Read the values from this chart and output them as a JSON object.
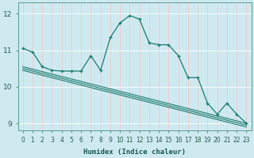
{
  "xlabel": "Humidex (Indice chaleur)",
  "bg_color": "#ceeaf0",
  "grid_color": "#f0c8c8",
  "line_color": "#1a7a6e",
  "ylim": [
    8.8,
    12.3
  ],
  "xlim": [
    -0.5,
    23.5
  ],
  "yticks": [
    9,
    10,
    11,
    12
  ],
  "xticks": [
    0,
    1,
    2,
    3,
    4,
    5,
    6,
    7,
    8,
    9,
    10,
    11,
    12,
    13,
    14,
    15,
    16,
    17,
    18,
    19,
    20,
    21,
    22,
    23
  ],
  "series": [
    {
      "x": [
        0,
        1,
        2,
        3,
        4,
        5,
        6,
        7,
        8,
        9,
        10,
        11,
        12,
        13,
        14,
        15,
        16,
        17,
        18,
        19,
        20,
        21,
        22,
        23
      ],
      "y": [
        11.05,
        10.95,
        10.55,
        10.45,
        10.43,
        10.43,
        10.43,
        10.85,
        10.45,
        11.35,
        11.75,
        11.95,
        11.85,
        11.2,
        11.15,
        11.15,
        10.85,
        10.25,
        10.25,
        9.55,
        9.25,
        9.55,
        9.25,
        9.0
      ],
      "marker": true
    },
    {
      "x": [
        0,
        23
      ],
      "y": [
        10.55,
        9.0
      ],
      "marker": false
    },
    {
      "x": [
        0,
        23
      ],
      "y": [
        10.5,
        8.95
      ],
      "marker": false
    },
    {
      "x": [
        0,
        23
      ],
      "y": [
        10.45,
        8.9
      ],
      "marker": false
    }
  ]
}
